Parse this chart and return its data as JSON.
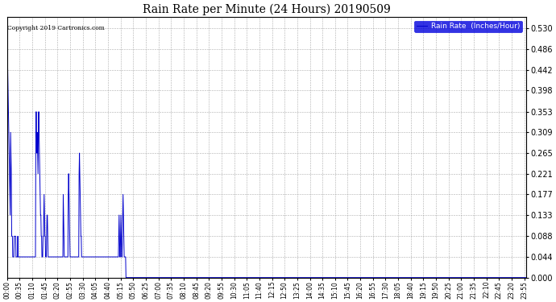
{
  "title": "Rain Rate per Minute (24 Hours) 20190509",
  "copyright": "Copyright 2019 Cartronics.com",
  "legend_label": "Rain Rate  (Inches/Hour)",
  "y_ticks": [
    0.0,
    0.044,
    0.088,
    0.133,
    0.177,
    0.221,
    0.265,
    0.309,
    0.353,
    0.398,
    0.442,
    0.486,
    0.53
  ],
  "ylim": [
    0.0,
    0.5546
  ],
  "line_color": "#0000cc",
  "background_color": "#ffffff",
  "grid_color": "#999999",
  "title_color": "#000000",
  "num_minutes": 1440,
  "rain_data": [
    0.53,
    0.486,
    0.442,
    0.398,
    0.353,
    0.309,
    0.265,
    0.221,
    0.177,
    0.133,
    0.309,
    0.265,
    0.221,
    0.088,
    0.088,
    0.088,
    0.044,
    0.044,
    0.044,
    0.044,
    0.088,
    0.088,
    0.088,
    0.088,
    0.088,
    0.044,
    0.044,
    0.044,
    0.044,
    0.044,
    0.088,
    0.044,
    0.044,
    0.044,
    0.044,
    0.044,
    0.044,
    0.044,
    0.044,
    0.044,
    0.044,
    0.044,
    0.044,
    0.044,
    0.044,
    0.044,
    0.044,
    0.044,
    0.044,
    0.044,
    0.044,
    0.044,
    0.044,
    0.044,
    0.044,
    0.044,
    0.044,
    0.044,
    0.044,
    0.044,
    0.044,
    0.044,
    0.044,
    0.044,
    0.044,
    0.044,
    0.044,
    0.044,
    0.044,
    0.044,
    0.044,
    0.044,
    0.044,
    0.044,
    0.044,
    0.044,
    0.044,
    0.044,
    0.044,
    0.044,
    0.309,
    0.353,
    0.309,
    0.265,
    0.309,
    0.265,
    0.221,
    0.309,
    0.353,
    0.309,
    0.265,
    0.221,
    0.177,
    0.133,
    0.133,
    0.088,
    0.088,
    0.044,
    0.044,
    0.044,
    0.088,
    0.088,
    0.133,
    0.177,
    0.133,
    0.088,
    0.088,
    0.044,
    0.044,
    0.044,
    0.088,
    0.133,
    0.133,
    0.088,
    0.044,
    0.044,
    0.044,
    0.044,
    0.044,
    0.044,
    0.044,
    0.044,
    0.044,
    0.044,
    0.044,
    0.044,
    0.044,
    0.044,
    0.044,
    0.044,
    0.044,
    0.044,
    0.044,
    0.044,
    0.044,
    0.044,
    0.044,
    0.044,
    0.044,
    0.044,
    0.044,
    0.044,
    0.044,
    0.044,
    0.044,
    0.044,
    0.044,
    0.044,
    0.044,
    0.044,
    0.044,
    0.044,
    0.044,
    0.044,
    0.044,
    0.044,
    0.177,
    0.133,
    0.088,
    0.044,
    0.044,
    0.044,
    0.044,
    0.044,
    0.044,
    0.044,
    0.044,
    0.044,
    0.044,
    0.044,
    0.177,
    0.221,
    0.177,
    0.133,
    0.088,
    0.044,
    0.044,
    0.044,
    0.044,
    0.044,
    0.044,
    0.044,
    0.044,
    0.044,
    0.044,
    0.044,
    0.044,
    0.044,
    0.044,
    0.044,
    0.044,
    0.044,
    0.044,
    0.044,
    0.044,
    0.044,
    0.044,
    0.044,
    0.044,
    0.044,
    0.221,
    0.265,
    0.221,
    0.177,
    0.133,
    0.088,
    0.088,
    0.044,
    0.044,
    0.044,
    0.044,
    0.044,
    0.044,
    0.044,
    0.044,
    0.044,
    0.044,
    0.044,
    0.044,
    0.044,
    0.044,
    0.044,
    0.044,
    0.044,
    0.044,
    0.044,
    0.044,
    0.044,
    0.044,
    0.044,
    0.044,
    0.044,
    0.044,
    0.044,
    0.044,
    0.044,
    0.044,
    0.044,
    0.044,
    0.044,
    0.044,
    0.044,
    0.044,
    0.044,
    0.044,
    0.044,
    0.044,
    0.044,
    0.044,
    0.044,
    0.044,
    0.044,
    0.044,
    0.044,
    0.044,
    0.044,
    0.044,
    0.044,
    0.044,
    0.044,
    0.044,
    0.044,
    0.044,
    0.044,
    0.044,
    0.044,
    0.044,
    0.044,
    0.044,
    0.044,
    0.044,
    0.044,
    0.044,
    0.044,
    0.044,
    0.044,
    0.044,
    0.044,
    0.044,
    0.044,
    0.044,
    0.044,
    0.044,
    0.044,
    0.044,
    0.044,
    0.044,
    0.044,
    0.044,
    0.044,
    0.044,
    0.044,
    0.044,
    0.044,
    0.044,
    0.044,
    0.044,
    0.044,
    0.044,
    0.044,
    0.044,
    0.044,
    0.044,
    0.044,
    0.044,
    0.044,
    0.044,
    0.044,
    0.044,
    0.044,
    0.088,
    0.133,
    0.088,
    0.044,
    0.044,
    0.088,
    0.133,
    0.088,
    0.044,
    0.044,
    0.088,
    0.133,
    0.177,
    0.133,
    0.088,
    0.044,
    0.044,
    0.044,
    0.044,
    0.044
  ],
  "x_tick_interval_minutes": 35,
  "figsize": [
    6.9,
    3.75
  ],
  "dpi": 100
}
